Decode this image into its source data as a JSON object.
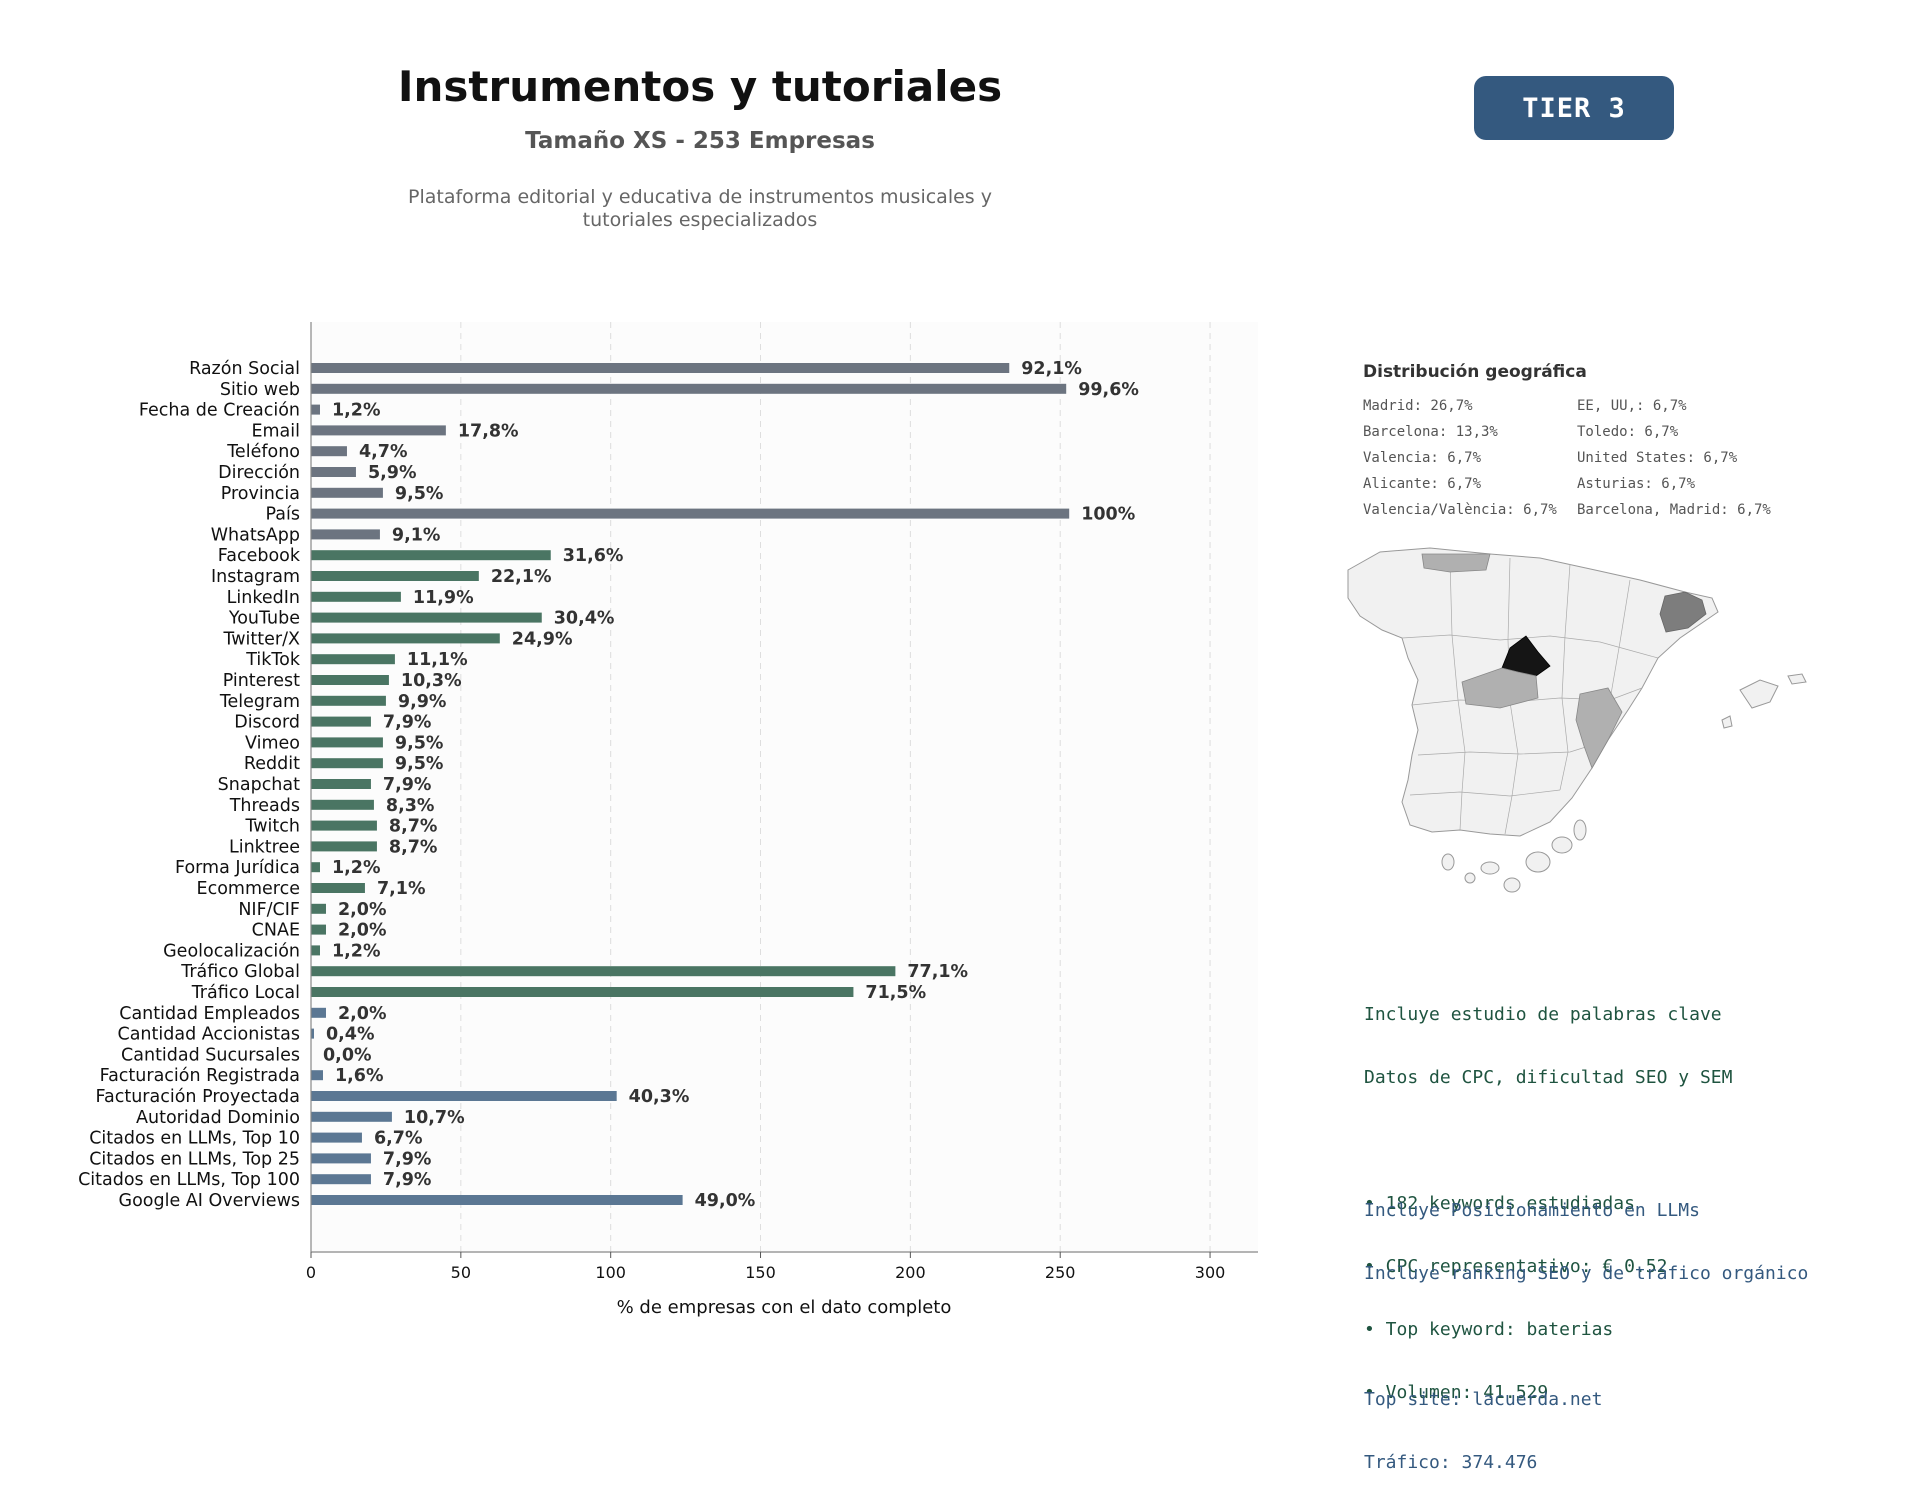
{
  "header": {
    "title": "Instrumentos y tutoriales",
    "subtitle": "Tamaño XS - 253 Empresas",
    "description_line1": "Plataforma editorial y educativa de instrumentos musicales y",
    "description_line2": "tutoriales especializados",
    "tier_badge": "TIER 3"
  },
  "chart_data": {
    "type": "bar",
    "orientation": "horizontal",
    "xlabel": "% de empresas con el dato completo",
    "xlim": [
      0,
      316
    ],
    "xticks": [
      0,
      50,
      100,
      150,
      200,
      250,
      300
    ],
    "grid": "vertical dashed",
    "colors": {
      "basic": "#6c7480",
      "social": "#4a7563",
      "business": "#5b7793"
    },
    "categories": [
      "Razón Social",
      "Sitio web",
      "Fecha de Creación",
      "Email",
      "Teléfono",
      "Dirección",
      "Provincia",
      "País",
      "WhatsApp",
      "Facebook",
      "Instagram",
      "LinkedIn",
      "YouTube",
      "Twitter/X",
      "TikTok",
      "Pinterest",
      "Telegram",
      "Discord",
      "Vimeo",
      "Reddit",
      "Snapchat",
      "Threads",
      "Twitch",
      "Linktree",
      "Forma Jurídica",
      "Ecommerce",
      "NIF/CIF",
      "CNAE",
      "Geolocalización",
      "Tráfico Global",
      "Tráfico Local",
      "Cantidad Empleados",
      "Cantidad Accionistas",
      "Cantidad Sucursales",
      "Facturación Registrada",
      "Facturación Proyectada",
      "Autoridad Dominio",
      "Citados en LLMs, Top 10",
      "Citados en LLMs, Top 25",
      "Citados en LLMs, Top 100",
      "Google AI Overviews"
    ],
    "values": [
      233,
      252,
      3,
      45,
      12,
      15,
      24,
      253,
      23,
      80,
      56,
      30,
      77,
      63,
      28,
      26,
      25,
      20,
      24,
      24,
      20,
      21,
      22,
      22,
      3,
      18,
      5,
      5,
      3,
      195,
      181,
      5,
      1,
      0,
      4,
      102,
      27,
      17,
      20,
      20,
      124
    ],
    "labels": [
      "92,1%",
      "99,6%",
      "1,2%",
      "17,8%",
      "4,7%",
      "5,9%",
      "9,5%",
      "100%",
      "9,1%",
      "31,6%",
      "22,1%",
      "11,9%",
      "30,4%",
      "24,9%",
      "11,1%",
      "10,3%",
      "9,9%",
      "7,9%",
      "9,5%",
      "9,5%",
      "7,9%",
      "8,3%",
      "8,7%",
      "8,7%",
      "1,2%",
      "7,1%",
      "2,0%",
      "2,0%",
      "1,2%",
      "77,1%",
      "71,5%",
      "2,0%",
      "0,4%",
      "0,0%",
      "1,6%",
      "40,3%",
      "10,7%",
      "6,7%",
      "7,9%",
      "7,9%",
      "49,0%"
    ],
    "groups": [
      "basic",
      "basic",
      "basic",
      "basic",
      "basic",
      "basic",
      "basic",
      "basic",
      "basic",
      "social",
      "social",
      "social",
      "social",
      "social",
      "social",
      "social",
      "social",
      "social",
      "social",
      "social",
      "social",
      "social",
      "social",
      "social",
      "social",
      "social",
      "social",
      "social",
      "social",
      "social",
      "social",
      "business",
      "business",
      "business",
      "business",
      "business",
      "business",
      "business",
      "business",
      "business",
      "business"
    ]
  },
  "geo": {
    "title": "Distribución geográfica",
    "items": [
      "Madrid: 26,7%",
      "EE, UU,: 6,7%",
      "Barcelona: 13,3%",
      "Toledo: 6,7%",
      "Valencia: 6,7%",
      "United States: 6,7%",
      "Alicante: 6,7%",
      "Asturias: 6,7%",
      "Valencia/València: 6,7%",
      "Barcelona, Madrid: 6,7%"
    ]
  },
  "keywords": {
    "line1": "Incluye estudio de palabras clave",
    "line2": "Datos de CPC, dificultad SEO y SEM",
    "bullet1": "• 182 keywords estudiadas",
    "bullet2": "• CPC representativo: € 0.52",
    "bullet3": "• Top keyword: baterias",
    "bullet4": "• Volumen: 41.529"
  },
  "llm": {
    "line1": "Incluye Posicionamiento en LLMs",
    "line2": "Incluye ranking SEO y de tráfico orgánico",
    "top_site": "Top site: lacuerda.net",
    "traffic": "Tráfico: 374.476"
  }
}
